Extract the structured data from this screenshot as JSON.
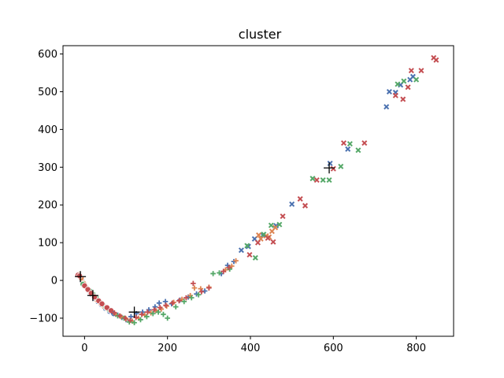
{
  "chart_data": {
    "type": "scatter",
    "title": "cluster",
    "xlabel": "",
    "ylabel": "",
    "xlim": [
      -52,
      890
    ],
    "ylim": [
      -148,
      622
    ],
    "xticks": [
      0,
      200,
      400,
      600,
      800
    ],
    "yticks": [
      -100,
      0,
      100,
      200,
      300,
      400,
      500,
      600
    ],
    "grid": false,
    "legend": "none",
    "colors": {
      "blue": "#4c72b0",
      "orange": "#dd8452",
      "green": "#55a868",
      "red": "#c44e52",
      "centroid": "#000000"
    },
    "series": [
      {
        "marker": "circle",
        "color": "#4c72b0",
        "x": [
          -10,
          -6,
          -3,
          0,
          3,
          6,
          9,
          12,
          18,
          25,
          32,
          40,
          50,
          60,
          70
        ],
        "y": [
          8,
          0,
          -6,
          -12,
          -17,
          -22,
          -26,
          -30,
          -38,
          -48,
          -56,
          -64,
          -74,
          -82,
          -88
        ]
      },
      {
        "marker": "circle",
        "color": "#dd8452",
        "x": [
          -14,
          -8,
          -2,
          5,
          14,
          22,
          30,
          38,
          46,
          56,
          66
        ],
        "y": [
          16,
          6,
          -8,
          -20,
          -30,
          -42,
          -52,
          -60,
          -68,
          -76,
          -82
        ]
      },
      {
        "marker": "circle",
        "color": "#55a868",
        "x": [
          -4,
          2,
          7,
          13,
          20,
          28,
          36,
          44,
          52,
          60
        ],
        "y": [
          -10,
          -16,
          -22,
          -28,
          -36,
          -46,
          -56,
          -64,
          -72,
          -78
        ]
      },
      {
        "marker": "circle",
        "color": "#c44e52",
        "x": [
          -16,
          -12,
          0,
          8,
          16,
          24,
          34,
          42,
          54,
          64
        ],
        "y": [
          14,
          12,
          -14,
          -24,
          -34,
          -44,
          -54,
          -62,
          -72,
          -80
        ]
      },
      {
        "marker": "plus",
        "color": "#4c72b0",
        "x": [
          70,
          80,
          90,
          100,
          112,
          125,
          140,
          155,
          170,
          180,
          195,
          210,
          230,
          250,
          270,
          290,
          330,
          345,
          360
        ],
        "y": [
          -88,
          -92,
          -98,
          -104,
          -96,
          -88,
          -84,
          -78,
          -70,
          -60,
          -56,
          -62,
          -52,
          -44,
          -36,
          -28,
          18,
          40,
          50
        ]
      },
      {
        "marker": "plus",
        "color": "#dd8452",
        "x": [
          75,
          88,
          100,
          115,
          130,
          145,
          160,
          172,
          185,
          198,
          215,
          235,
          255,
          265,
          280,
          300,
          340,
          355,
          365
        ],
        "y": [
          -90,
          -96,
          -102,
          -108,
          -100,
          -92,
          -86,
          -80,
          -76,
          -68,
          -58,
          -50,
          -40,
          -20,
          -22,
          -18,
          28,
          38,
          52
        ]
      },
      {
        "marker": "plus",
        "color": "#55a868",
        "x": [
          80,
          95,
          108,
          120,
          135,
          150,
          165,
          178,
          190,
          200,
          220,
          240,
          258,
          275,
          310,
          325,
          350
        ],
        "y": [
          -94,
          -100,
          -110,
          -112,
          -104,
          -96,
          -88,
          -84,
          -90,
          -100,
          -70,
          -56,
          -46,
          -38,
          18,
          20,
          30
        ]
      },
      {
        "marker": "plus",
        "color": "#c44e52",
        "x": [
          72,
          85,
          98,
          110,
          124,
          138,
          152,
          168,
          182,
          196,
          212,
          228,
          245,
          262,
          282,
          300,
          335,
          348
        ],
        "y": [
          -86,
          -94,
          -100,
          -106,
          -98,
          -90,
          -84,
          -78,
          -72,
          -66,
          -60,
          -54,
          -46,
          -8,
          -30,
          -20,
          24,
          34
        ]
      },
      {
        "marker": "x",
        "color": "#4c72b0",
        "x": [
          378,
          395,
          410,
          430,
          462,
          500,
          592,
          635,
          728,
          735,
          750,
          762,
          785,
          792
        ],
        "y": [
          80,
          90,
          110,
          120,
          145,
          202,
          310,
          348,
          460,
          500,
          498,
          518,
          532,
          540
        ],
        "labels": []
      },
      {
        "marker": "x",
        "color": "#dd8452",
        "x": [
          420,
          438,
          452,
          425,
          445,
          460
        ],
        "y": [
          120,
          118,
          130,
          110,
          115,
          140
        ]
      },
      {
        "marker": "x",
        "color": "#55a868",
        "x": [
          392,
          412,
          432,
          450,
          470,
          550,
          575,
          590,
          618,
          640,
          660,
          755,
          770,
          800
        ],
        "y": [
          92,
          60,
          122,
          146,
          148,
          270,
          266,
          266,
          302,
          362,
          345,
          520,
          528,
          532
        ]
      },
      {
        "marker": "x",
        "color": "#c44e52",
        "x": [
          398,
          418,
          442,
          455,
          478,
          520,
          532,
          560,
          600,
          625,
          675,
          750,
          768,
          780,
          788,
          812,
          842,
          848
        ],
        "y": [
          68,
          100,
          112,
          102,
          170,
          216,
          198,
          266,
          296,
          364,
          364,
          490,
          480,
          512,
          556,
          556,
          590,
          584
        ]
      }
    ],
    "centroids": {
      "marker": "plus-large",
      "color": "#000000",
      "x": [
        -10,
        20,
        120,
        590
      ],
      "y": [
        10,
        -40,
        -84,
        298
      ]
    }
  }
}
